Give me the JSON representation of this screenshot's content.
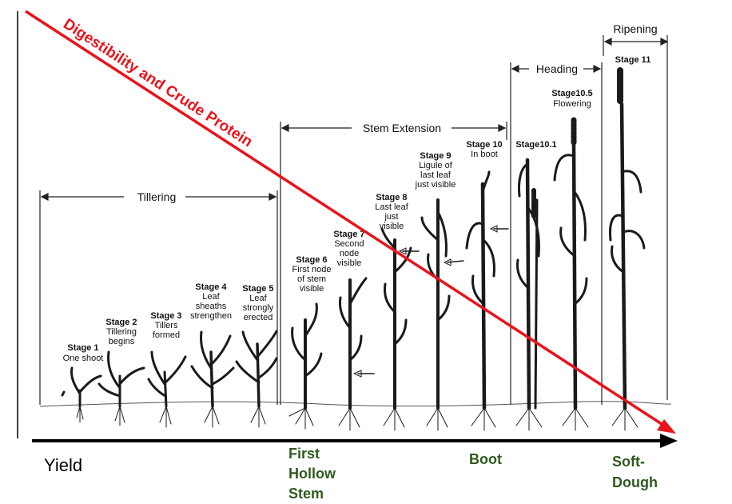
{
  "trend_label": "Digestibility and Crude Protein",
  "yield_label": "Yield",
  "periods": [
    {
      "id": "tillering",
      "label": "Tillering"
    },
    {
      "id": "stem-extension",
      "label": "Stem Extension"
    },
    {
      "id": "heading",
      "label": "Heading"
    },
    {
      "id": "ripening",
      "label": "Ripening"
    }
  ],
  "stages": [
    {
      "id": "1",
      "name": "Stage 1",
      "desc": [
        "One shoot"
      ]
    },
    {
      "id": "2",
      "name": "Stage 2",
      "desc": [
        "Tillering",
        "begins"
      ]
    },
    {
      "id": "3",
      "name": "Stage 3",
      "desc": [
        "Tillers",
        "formed"
      ]
    },
    {
      "id": "4",
      "name": "Stage 4",
      "desc": [
        "Leaf",
        "sheaths",
        "strengthen"
      ]
    },
    {
      "id": "5",
      "name": "Stage 5",
      "desc": [
        "Leaf",
        "strongly",
        "erected"
      ]
    },
    {
      "id": "6",
      "name": "Stage 6",
      "desc": [
        "First node",
        "of stem",
        "visible"
      ]
    },
    {
      "id": "7",
      "name": "Stage 7",
      "desc": [
        "Second",
        "node",
        "visible"
      ]
    },
    {
      "id": "8",
      "name": "Stage 8",
      "desc": [
        "Last leaf",
        "just",
        "visible"
      ]
    },
    {
      "id": "9",
      "name": "Stage 9",
      "desc": [
        "Ligule of",
        "last leaf",
        "just visible"
      ]
    },
    {
      "id": "10",
      "name": "Stage 10",
      "desc": [
        "In boot"
      ]
    },
    {
      "id": "10-1",
      "name": "Stage10.1",
      "desc": []
    },
    {
      "id": "10-5",
      "name": "Stage10.5",
      "desc": [
        "Flowering"
      ]
    },
    {
      "id": "11",
      "name": "Stage 11",
      "desc": []
    }
  ],
  "milestones": [
    {
      "id": "first-hollow-stem",
      "lines": [
        "First",
        "Hollow",
        "Stem"
      ]
    },
    {
      "id": "boot",
      "lines": [
        "Boot"
      ]
    },
    {
      "id": "soft-dough",
      "lines": [
        "Soft-",
        "Dough"
      ]
    }
  ],
  "colors": {
    "trend": "#e8141b",
    "milestone": "#2f5a1f",
    "axis": "#000000"
  }
}
